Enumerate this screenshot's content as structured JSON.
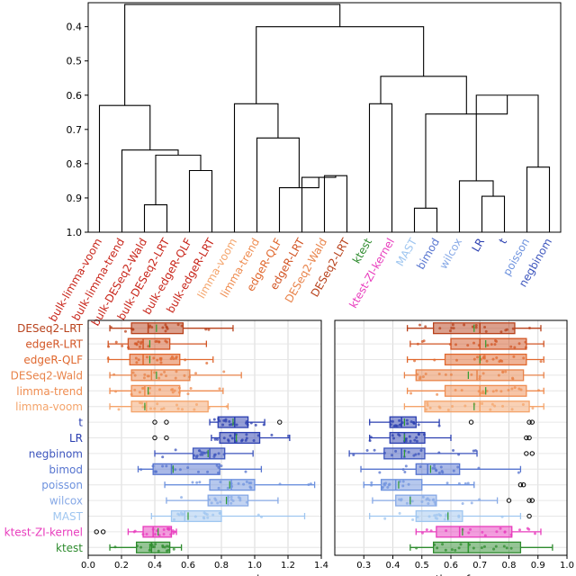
{
  "chart_data": [
    {
      "type": "dendrogram",
      "title": "",
      "ylabel": "",
      "ylim": [
        1.0,
        0.3
      ],
      "yticks": [
        "0.4",
        "0.5",
        "0.6",
        "0.7",
        "0.8",
        "0.9",
        "1.0"
      ],
      "leaves": [
        {
          "label": "bulk-limma-voom",
          "color": "#c8251a"
        },
        {
          "label": "bulk-limma-trend",
          "color": "#c8251a"
        },
        {
          "label": "bulk-DESeq2-Wald",
          "color": "#c8251a"
        },
        {
          "label": "bulk-DESeq2-LRT",
          "color": "#c8251a"
        },
        {
          "label": "bulk-edgeR-QLF",
          "color": "#c8251a"
        },
        {
          "label": "bulk-edgeR-LRT",
          "color": "#c8251a"
        },
        {
          "label": "limma-voom",
          "color": "#f4a46b"
        },
        {
          "label": "limma-trend",
          "color": "#ef8c50"
        },
        {
          "label": "edgeR-QLF",
          "color": "#e0682e"
        },
        {
          "label": "edgeR-LRT",
          "color": "#d25525"
        },
        {
          "label": "DESeq2-Wald",
          "color": "#e8834a"
        },
        {
          "label": "DESeq2-LRT",
          "color": "#b8421c"
        },
        {
          "label": "ktest",
          "color": "#2e8b2e"
        },
        {
          "label": "ktest-ZI-kernel",
          "color": "#e83cbd"
        },
        {
          "label": "MAST",
          "color": "#9fc6f0"
        },
        {
          "label": "bimod",
          "color": "#5674cf"
        },
        {
          "label": "wilcox",
          "color": "#87a9e6"
        },
        {
          "label": "LR",
          "color": "#2b3fb0"
        },
        {
          "label": "t",
          "color": "#2b3fb0"
        },
        {
          "label": "poisson",
          "color": "#6d92de"
        },
        {
          "label": "negbinom",
          "color": "#3d55bd"
        }
      ],
      "merges": [
        [
          3,
          4,
          0.92
        ],
        [
          5,
          6,
          0.82
        ],
        [
          22,
          23,
          0.775
        ],
        [
          2,
          24,
          0.76
        ],
        [
          1,
          25,
          0.63
        ],
        [
          11,
          12,
          0.835
        ],
        [
          10,
          27,
          0.84
        ],
        [
          9,
          28,
          0.87
        ],
        [
          8,
          29,
          0.725
        ],
        [
          7,
          30,
          0.625
        ],
        [
          13,
          14,
          0.625
        ],
        [
          15,
          16,
          0.93
        ],
        [
          18,
          19,
          0.895
        ],
        [
          17,
          34,
          0.85
        ],
        [
          20,
          21,
          0.81
        ],
        [
          35,
          36,
          0.6
        ],
        [
          33,
          37,
          0.655
        ],
        [
          32,
          38,
          0.545
        ],
        [
          31,
          39,
          0.4
        ],
        [
          26,
          40,
          0.335
        ]
      ]
    },
    {
      "type": "box",
      "xlabel": "average gene expression",
      "xlim": [
        0.0,
        1.4
      ],
      "xticks": [
        "0.0",
        "0.2",
        "0.4",
        "0.6",
        "0.8",
        "1.0",
        "1.2",
        "1.4"
      ],
      "categories": [
        "DESeq2-LRT",
        "edgeR-LRT",
        "edgeR-QLF",
        "DESeq2-Wald",
        "limma-trend",
        "limma-voom",
        "t",
        "LR",
        "negbinom",
        "bimod",
        "poisson",
        "wilcox",
        "MAST",
        "ktest-ZI-kernel",
        "ktest"
      ],
      "colors": [
        "#b8421c",
        "#d25525",
        "#e0682e",
        "#e8834a",
        "#ef8c50",
        "#f4a46b",
        "#2b3fb0",
        "#2b3fb0",
        "#3d55bd",
        "#5674cf",
        "#6d92de",
        "#87a9e6",
        "#9fc6f0",
        "#e83cbd",
        "#2e8b2e"
      ],
      "boxes": [
        {
          "whislo": 0.13,
          "q1": 0.26,
          "med": 0.36,
          "mean": 0.41,
          "q3": 0.57,
          "whishi": 0.87,
          "fliers": []
        },
        {
          "whislo": 0.12,
          "q1": 0.24,
          "med": 0.33,
          "mean": 0.37,
          "q3": 0.49,
          "whishi": 0.71,
          "fliers": []
        },
        {
          "whislo": 0.12,
          "q1": 0.25,
          "med": 0.33,
          "mean": 0.37,
          "q3": 0.55,
          "whishi": 0.75,
          "fliers": []
        },
        {
          "whislo": 0.13,
          "q1": 0.26,
          "med": 0.38,
          "mean": 0.41,
          "q3": 0.61,
          "whishi": 0.92,
          "fliers": []
        },
        {
          "whislo": 0.13,
          "q1": 0.26,
          "med": 0.34,
          "mean": 0.36,
          "q3": 0.55,
          "whishi": 0.81,
          "fliers": []
        },
        {
          "whislo": 0.13,
          "q1": 0.26,
          "med": 0.35,
          "mean": 0.34,
          "q3": 0.72,
          "whishi": 0.84,
          "fliers": []
        },
        {
          "whislo": 0.73,
          "q1": 0.78,
          "med": 0.88,
          "mean": 0.87,
          "q3": 0.96,
          "whishi": 1.06,
          "fliers": [
            0.4,
            0.47,
            1.15
          ]
        },
        {
          "whislo": 0.74,
          "q1": 0.79,
          "med": 0.88,
          "mean": 0.89,
          "q3": 1.03,
          "whishi": 1.21,
          "fliers": [
            0.4,
            0.47
          ]
        },
        {
          "whislo": 0.4,
          "q1": 0.63,
          "med": 0.73,
          "mean": 0.72,
          "q3": 0.82,
          "whishi": 0.99,
          "fliers": []
        },
        {
          "whislo": 0.3,
          "q1": 0.39,
          "med": 0.5,
          "mean": 0.51,
          "q3": 0.79,
          "whishi": 1.04,
          "fliers": []
        },
        {
          "whislo": 0.46,
          "q1": 0.73,
          "med": 0.86,
          "mean": 0.85,
          "q3": 1.0,
          "whishi": 1.36,
          "fliers": []
        },
        {
          "whislo": 0.47,
          "q1": 0.72,
          "med": 0.84,
          "mean": 0.83,
          "q3": 0.96,
          "whishi": 1.14,
          "fliers": []
        },
        {
          "whislo": 0.38,
          "q1": 0.5,
          "med": 0.58,
          "mean": 0.6,
          "q3": 0.8,
          "whishi": 1.3,
          "fliers": []
        },
        {
          "whislo": 0.24,
          "q1": 0.33,
          "med": 0.39,
          "mean": 0.42,
          "q3": 0.5,
          "whishi": 0.53,
          "fliers": [
            0.05,
            0.09
          ]
        },
        {
          "whislo": 0.13,
          "q1": 0.29,
          "med": 0.38,
          "mean": 0.37,
          "q3": 0.49,
          "whishi": 0.56,
          "fliers": []
        }
      ]
    },
    {
      "type": "box",
      "xlabel": "proportion of zeros",
      "xlim": [
        0.2,
        1.0
      ],
      "xticks": [
        "0.3",
        "0.4",
        "0.5",
        "0.6",
        "0.7",
        "0.8",
        "0.9",
        "1.0"
      ],
      "categories": [
        "DESeq2-LRT",
        "edgeR-LRT",
        "edgeR-QLF",
        "DESeq2-Wald",
        "limma-trend",
        "limma-voom",
        "t",
        "LR",
        "negbinom",
        "bimod",
        "poisson",
        "wilcox",
        "MAST",
        "ktest-ZI-kernel",
        "ktest"
      ],
      "colors": [
        "#b8421c",
        "#d25525",
        "#e0682e",
        "#e8834a",
        "#ef8c50",
        "#f4a46b",
        "#2b3fb0",
        "#2b3fb0",
        "#3d55bd",
        "#5674cf",
        "#6d92de",
        "#87a9e6",
        "#9fc6f0",
        "#e83cbd",
        "#2e8b2e"
      ],
      "boxes": [
        {
          "whislo": 0.45,
          "q1": 0.54,
          "med": 0.7,
          "mean": 0.68,
          "q3": 0.82,
          "whishi": 0.91,
          "fliers": []
        },
        {
          "whislo": 0.46,
          "q1": 0.6,
          "med": 0.7,
          "mean": 0.72,
          "q3": 0.86,
          "whishi": 0.92,
          "fliers": []
        },
        {
          "whislo": 0.45,
          "q1": 0.58,
          "med": 0.7,
          "mean": 0.7,
          "q3": 0.86,
          "whishi": 0.92,
          "fliers": []
        },
        {
          "whislo": 0.44,
          "q1": 0.48,
          "med": 0.69,
          "mean": 0.66,
          "q3": 0.85,
          "whishi": 0.92,
          "fliers": []
        },
        {
          "whislo": 0.45,
          "q1": 0.58,
          "med": 0.7,
          "mean": 0.72,
          "q3": 0.86,
          "whishi": 0.92,
          "fliers": []
        },
        {
          "whislo": 0.44,
          "q1": 0.51,
          "med": 0.7,
          "mean": 0.68,
          "q3": 0.87,
          "whishi": 0.92,
          "fliers": []
        },
        {
          "whislo": 0.32,
          "q1": 0.39,
          "med": 0.43,
          "mean": 0.44,
          "q3": 0.48,
          "whishi": 0.56,
          "fliers": [
            0.67,
            0.87,
            0.88
          ]
        },
        {
          "whislo": 0.32,
          "q1": 0.39,
          "med": 0.44,
          "mean": 0.44,
          "q3": 0.51,
          "whishi": 0.6,
          "fliers": [
            0.86,
            0.87
          ]
        },
        {
          "whislo": 0.25,
          "q1": 0.37,
          "med": 0.43,
          "mean": 0.44,
          "q3": 0.51,
          "whishi": 0.69,
          "fliers": [
            0.86,
            0.88
          ]
        },
        {
          "whislo": 0.29,
          "q1": 0.48,
          "med": 0.52,
          "mean": 0.53,
          "q3": 0.63,
          "whishi": 0.84,
          "fliers": []
        },
        {
          "whislo": 0.3,
          "q1": 0.36,
          "med": 0.41,
          "mean": 0.42,
          "q3": 0.5,
          "whishi": 0.68,
          "fliers": [
            0.84,
            0.85
          ]
        },
        {
          "whislo": 0.33,
          "q1": 0.41,
          "med": 0.46,
          "mean": 0.46,
          "q3": 0.55,
          "whishi": 0.76,
          "fliers": [
            0.8,
            0.87,
            0.88
          ]
        },
        {
          "whislo": 0.32,
          "q1": 0.48,
          "med": 0.59,
          "mean": 0.59,
          "q3": 0.64,
          "whishi": 0.84,
          "fliers": [
            0.87
          ]
        },
        {
          "whislo": 0.48,
          "q1": 0.55,
          "med": 0.63,
          "mean": 0.64,
          "q3": 0.81,
          "whishi": 0.91,
          "fliers": []
        },
        {
          "whislo": 0.46,
          "q1": 0.54,
          "med": 0.66,
          "mean": 0.66,
          "q3": 0.84,
          "whishi": 0.95,
          "fliers": []
        }
      ]
    }
  ]
}
